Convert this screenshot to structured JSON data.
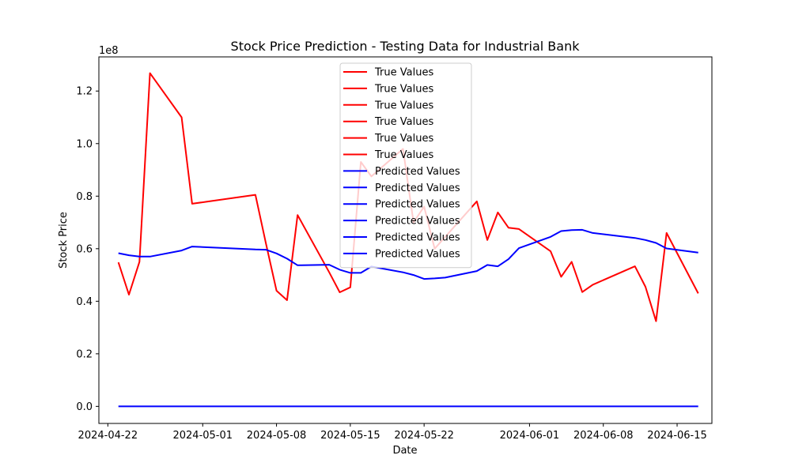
{
  "chart_data": {
    "type": "line",
    "title": "Stock Price Prediction - Testing Data for Industrial Bank",
    "xlabel": "Date",
    "ylabel": "Stock Price",
    "y_offset_label": "1e8",
    "ylim": [
      -0.065,
      1.33
    ],
    "y_ticks": [
      0.0,
      0.2,
      0.4,
      0.6,
      0.8,
      1.0,
      1.2
    ],
    "y_tick_labels": [
      "0.0",
      "0.2",
      "0.4",
      "0.6",
      "0.8",
      "1.0",
      "1.2"
    ],
    "x_ticks": [
      {
        "day": 0,
        "label": "2024-04-22"
      },
      {
        "day": 9,
        "label": "2024-05-01"
      },
      {
        "day": 16,
        "label": "2024-05-08"
      },
      {
        "day": 23,
        "label": "2024-05-15"
      },
      {
        "day": 30,
        "label": "2024-05-22"
      },
      {
        "day": 40,
        "label": "2024-06-01"
      },
      {
        "day": 47,
        "label": "2024-06-08"
      },
      {
        "day": 54,
        "label": "2024-06-15"
      }
    ],
    "xlim_days": [
      -0.85,
      57.3
    ],
    "legend": {
      "position": "upper center",
      "entries": [
        {
          "label": "True Values",
          "color": "#ff0000"
        },
        {
          "label": "True Values",
          "color": "#ff0000"
        },
        {
          "label": "True Values",
          "color": "#ff0000"
        },
        {
          "label": "True Values",
          "color": "#ff0000"
        },
        {
          "label": "True Values",
          "color": "#ff0000"
        },
        {
          "label": "True Values",
          "color": "#ff0000"
        },
        {
          "label": "Predicted Values",
          "color": "#0000ff"
        },
        {
          "label": "Predicted Values",
          "color": "#0000ff"
        },
        {
          "label": "Predicted Values",
          "color": "#0000ff"
        },
        {
          "label": "Predicted Values",
          "color": "#0000ff"
        },
        {
          "label": "Predicted Values",
          "color": "#0000ff"
        },
        {
          "label": "Predicted Values",
          "color": "#0000ff"
        }
      ]
    },
    "series": [
      {
        "name": "True Values",
        "color": "#ff0000",
        "points": [
          [
            1,
            0.548
          ],
          [
            2,
            0.425
          ],
          [
            3,
            0.55
          ],
          [
            4,
            1.268
          ],
          [
            7,
            1.1
          ],
          [
            8,
            0.771
          ],
          [
            14,
            0.805
          ],
          [
            15,
            0.62
          ],
          [
            16,
            0.44
          ],
          [
            17,
            0.404
          ],
          [
            18,
            0.728
          ],
          [
            21,
            0.51
          ],
          [
            22,
            0.434
          ],
          [
            23,
            0.453
          ],
          [
            24,
            0.93
          ],
          [
            25,
            0.875
          ],
          [
            28,
            0.98
          ],
          [
            29,
            0.7
          ],
          [
            30,
            0.76
          ],
          [
            31,
            0.6
          ],
          [
            35,
            0.78
          ],
          [
            36,
            0.633
          ],
          [
            37,
            0.738
          ],
          [
            38,
            0.68
          ],
          [
            39,
            0.675
          ],
          [
            42,
            0.59
          ],
          [
            43,
            0.493
          ],
          [
            44,
            0.55
          ],
          [
            45,
            0.435
          ],
          [
            46,
            0.463
          ],
          [
            50,
            0.533
          ],
          [
            51,
            0.455
          ],
          [
            52,
            0.324
          ],
          [
            53,
            0.66
          ],
          [
            56,
            0.43
          ]
        ]
      },
      {
        "name": "Predicted Values",
        "color": "#0000ff",
        "points": [
          [
            1,
            0.583
          ],
          [
            2,
            0.575
          ],
          [
            3,
            0.57
          ],
          [
            4,
            0.57
          ],
          [
            7,
            0.593
          ],
          [
            8,
            0.608
          ],
          [
            14,
            0.597
          ],
          [
            15,
            0.596
          ],
          [
            16,
            0.582
          ],
          [
            17,
            0.562
          ],
          [
            18,
            0.537
          ],
          [
            21,
            0.539
          ],
          [
            22,
            0.52
          ],
          [
            23,
            0.508
          ],
          [
            24,
            0.508
          ],
          [
            25,
            0.532
          ],
          [
            28,
            0.51
          ],
          [
            29,
            0.5
          ],
          [
            30,
            0.485
          ],
          [
            31,
            0.487
          ],
          [
            32,
            0.49
          ],
          [
            35,
            0.515
          ],
          [
            36,
            0.538
          ],
          [
            37,
            0.533
          ],
          [
            38,
            0.56
          ],
          [
            39,
            0.602
          ],
          [
            42,
            0.645
          ],
          [
            43,
            0.667
          ],
          [
            44,
            0.671
          ],
          [
            45,
            0.672
          ],
          [
            46,
            0.66
          ],
          [
            50,
            0.641
          ],
          [
            51,
            0.633
          ],
          [
            52,
            0.622
          ],
          [
            53,
            0.601
          ],
          [
            56,
            0.585
          ]
        ]
      },
      {
        "name": "Predicted Values",
        "color": "#0000ff",
        "points": [
          [
            1,
            0.0
          ],
          [
            56,
            0.0
          ]
        ]
      }
    ]
  }
}
